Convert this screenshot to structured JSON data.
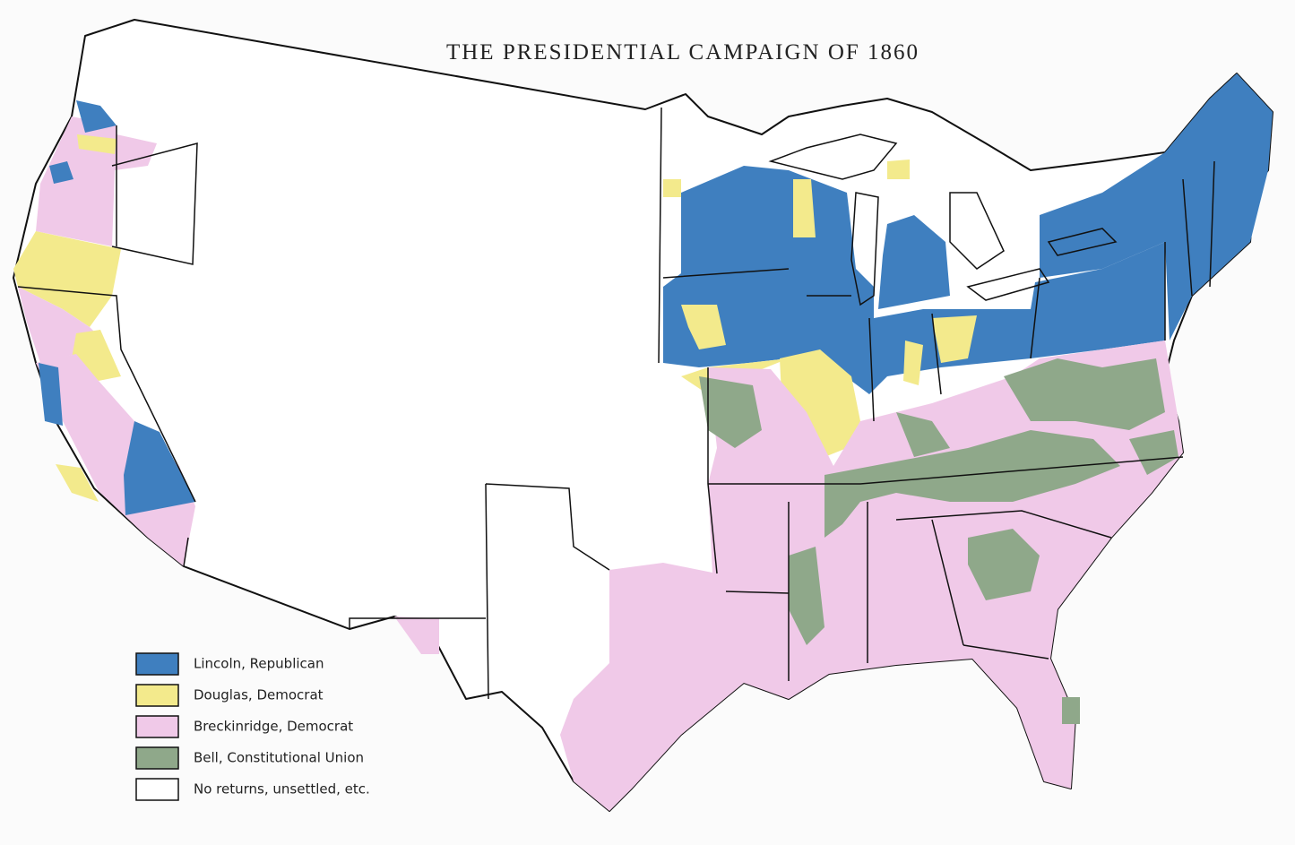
{
  "title": "THE PRESIDENTIAL CAMPAIGN OF 1860",
  "legend": [
    {
      "label": "Lincoln, Republican",
      "color": "#3f7fbf"
    },
    {
      "label": "Douglas, Democrat",
      "color": "#f3ea8c"
    },
    {
      "label": "Breckinridge, Democrat",
      "color": "#f0c9e8"
    },
    {
      "label": "Bell, Constitutional Union",
      "color": "#8fa88a"
    },
    {
      "label": "No returns, unsettled, etc.",
      "color": "#ffffff"
    }
  ]
}
